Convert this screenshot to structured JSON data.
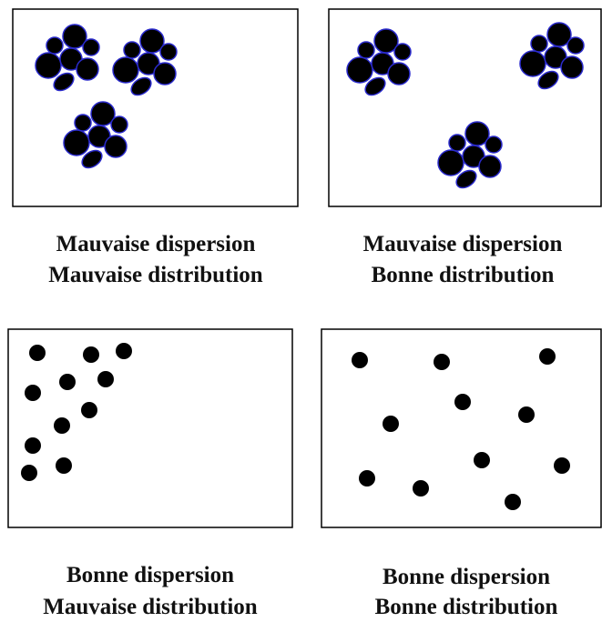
{
  "panels": [
    {
      "caption": [
        "Mauvaise dispersion",
        "Mauvaise distribution"
      ]
    },
    {
      "caption": [
        "Mauvaise dispersion",
        "Bonne distribution"
      ]
    },
    {
      "caption": [
        "Bonne dispersion",
        "Mauvaise distribution"
      ]
    },
    {
      "caption": [
        "Bonne dispersion",
        "Bonne distribution"
      ]
    }
  ]
}
